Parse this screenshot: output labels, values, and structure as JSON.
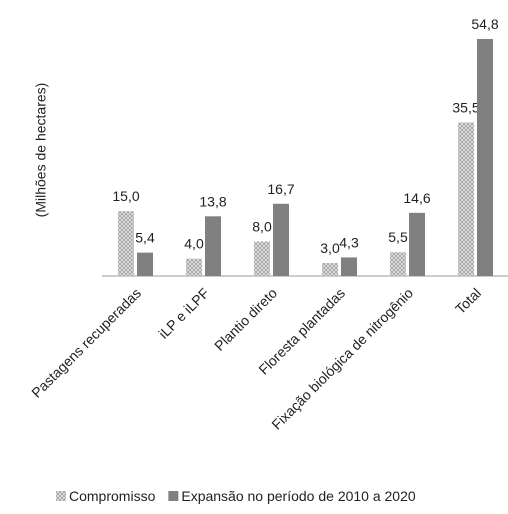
{
  "chart_data": {
    "type": "bar",
    "y_label": "(Milhões de hectares)",
    "categories": [
      "Pastagens recuperadas",
      "iLP e iLPF",
      "Plantio direto",
      "Floresta plantadas",
      "Fixação biológica de nitrogênio",
      "Total"
    ],
    "series": [
      {
        "name": "Compromisso",
        "color": "#c8c8c8",
        "values": [
          15.0,
          4.0,
          8.0,
          3.0,
          5.5,
          35.5
        ],
        "value_labels": [
          "15,0",
          "4,0",
          "8,0",
          "3,0",
          "5,5",
          "35,5"
        ]
      },
      {
        "name": "Expansão no período de 2010 a 2020",
        "color": "#808080",
        "values": [
          5.4,
          13.8,
          16.7,
          4.3,
          14.6,
          54.8
        ],
        "value_labels": [
          "5,4",
          "13,8",
          "16,7",
          "4,3",
          "14,6",
          "54,8"
        ]
      }
    ]
  }
}
